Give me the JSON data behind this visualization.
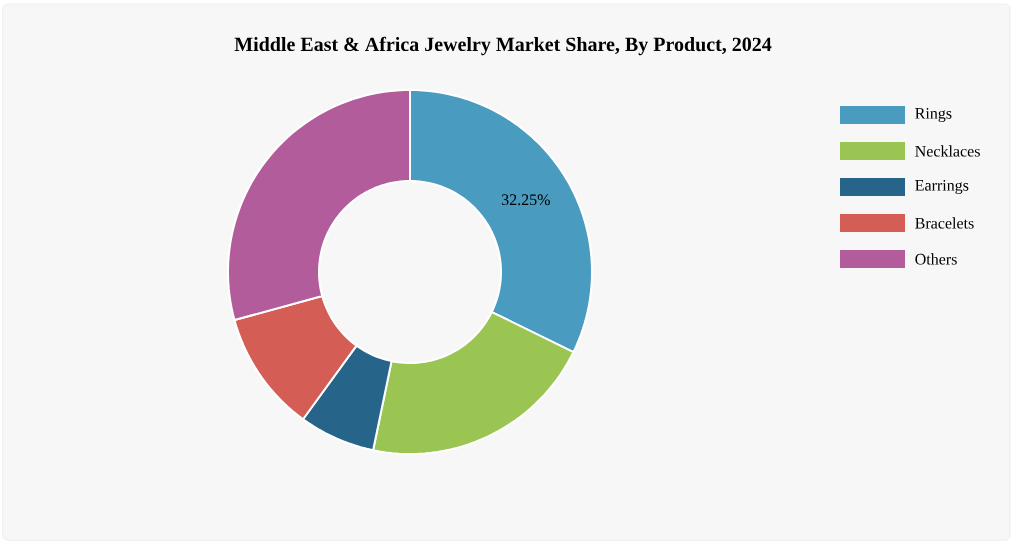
{
  "chart_data": {
    "type": "donut",
    "title": "Middle East & Africa Jewelry Market Share, By Product, 2024",
    "categories": [
      "Rings",
      "Necklaces",
      "Earrings",
      "Bracelets",
      "Others"
    ],
    "values": [
      32.25,
      21,
      6.75,
      10.75,
      29.25
    ],
    "colors": [
      "#4a9bc0",
      "#9bc552",
      "#27648a",
      "#d45e55",
      "#b35c9c"
    ],
    "value_labels": [
      "32.25%",
      null,
      null,
      null,
      null
    ],
    "legend": "top right"
  }
}
